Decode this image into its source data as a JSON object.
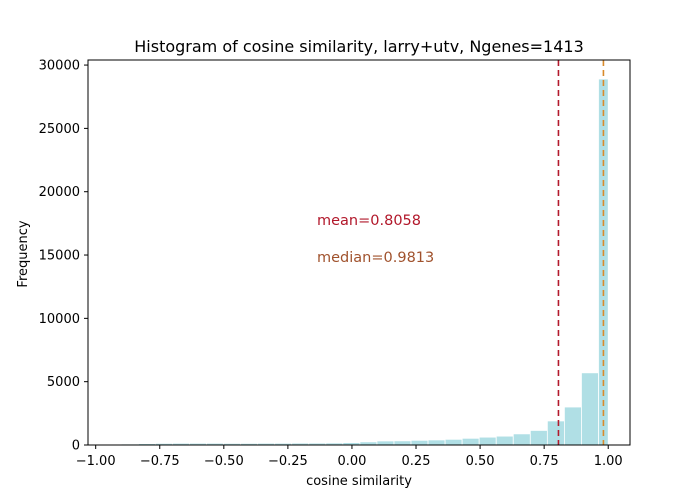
{
  "chart_data": {
    "type": "bar",
    "title": "Histogram of cosine similarity, larry+utv, Ngenes=1413",
    "xlabel": "cosine similarity",
    "ylabel": "Frequency",
    "xlim": [
      -1.03,
      1.085
    ],
    "ylim": [
      0,
      30400
    ],
    "xticks": [
      -1.0,
      -0.75,
      -0.5,
      -0.25,
      0.0,
      0.25,
      0.5,
      0.75,
      1.0
    ],
    "xtick_labels": [
      "−1.00",
      "−0.75",
      "−0.50",
      "−0.25",
      "0.00",
      "0.25",
      "0.50",
      "0.75",
      "1.00"
    ],
    "yticks": [
      0,
      5000,
      10000,
      15000,
      20000,
      25000,
      30000
    ],
    "ytick_labels": [
      "0",
      "5000",
      "10000",
      "15000",
      "20000",
      "25000",
      "30000"
    ],
    "grid": false,
    "bins": {
      "edges": [
        -0.9,
        -0.8335,
        -0.767,
        -0.7005,
        -0.634,
        -0.5675,
        -0.501,
        -0.4345,
        -0.368,
        -0.3015,
        -0.235,
        -0.1685,
        -0.102,
        -0.0355,
        0.031,
        0.0975,
        0.164,
        0.2305,
        0.297,
        0.3635,
        0.43,
        0.4965,
        0.563,
        0.6295,
        0.696,
        0.7625,
        0.829,
        0.8955,
        0.962,
        1.0
      ],
      "values": [
        80,
        110,
        130,
        140,
        140,
        140,
        130,
        130,
        140,
        140,
        150,
        150,
        160,
        190,
        250,
        320,
        330,
        370,
        400,
        450,
        530,
        620,
        700,
        880,
        1150,
        1900,
        3000,
        5700,
        28900
      ]
    },
    "bar_color": "#b0dfe5",
    "bar_edge_color": "#ffffff",
    "reference_lines": [
      {
        "name": "mean",
        "value": 0.8058,
        "label": "mean=0.8058",
        "color": "#b2182b",
        "style": "dashed"
      },
      {
        "name": "median",
        "value": 0.9813,
        "label": "median=0.9813",
        "color": "#a0522d",
        "style": "dashed"
      }
    ],
    "median_line_color": "#d98a2b"
  }
}
